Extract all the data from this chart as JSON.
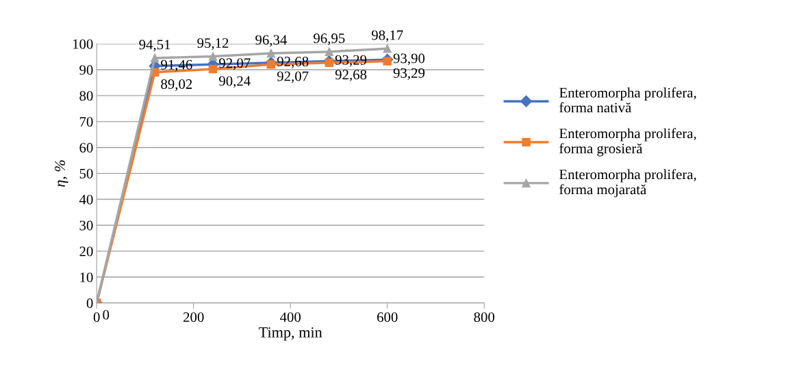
{
  "chart_data": {
    "type": "line",
    "xlabel": "Timp, min",
    "ylabel": "η, %",
    "x": [
      0,
      120,
      240,
      360,
      480,
      600
    ],
    "series": [
      {
        "name": "Enteromorpha prolifera,\nforma nativă",
        "color": "#4472c4",
        "marker": "diamond",
        "values": [
          0,
          91.46,
          92.07,
          92.68,
          93.29,
          93.9
        ],
        "value_labels": [
          null,
          "91,46",
          "92,07",
          "92,68",
          "93,29",
          "93,90"
        ]
      },
      {
        "name": "Enteromorpha prolifera,\nforma grosieră",
        "color": "#ed7d31",
        "marker": "square",
        "values": [
          0,
          89.02,
          90.24,
          92.07,
          92.68,
          93.29
        ],
        "value_labels": [
          "0",
          "89,02",
          "90,24",
          "92,07",
          "92,68",
          "93,29"
        ]
      },
      {
        "name": "Enteromorpha prolifera,\nforma mojarată",
        "color": "#a5a5a5",
        "marker": "triangle",
        "values": [
          0,
          94.51,
          95.12,
          96.34,
          96.95,
          98.17
        ],
        "value_labels": [
          null,
          "94,51",
          "95,12",
          "96,34",
          "96,95",
          "98,17"
        ]
      }
    ],
    "xlim": [
      0,
      800
    ],
    "xticks": [
      0,
      200,
      400,
      600,
      800
    ],
    "ylim": [
      0,
      100
    ],
    "yticks": [
      0,
      10,
      20,
      30,
      40,
      50,
      60,
      70,
      80,
      90,
      100
    ],
    "grid": "y",
    "legend": "right"
  }
}
